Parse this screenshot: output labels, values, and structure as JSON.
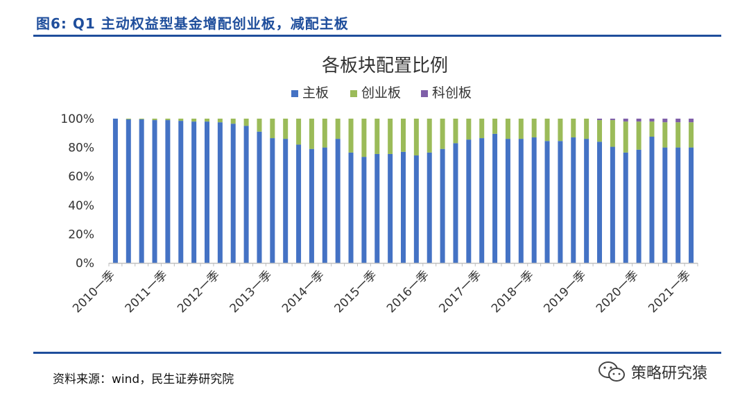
{
  "figure": {
    "title": "图6: Q1 主动权益型基金增配创业板，减配主板",
    "source": "资料来源：wind，民生证券研究院",
    "watermark": "策略研究猿",
    "watermark_icon": "wechat-icon"
  },
  "colors": {
    "main_board": "#4472c4",
    "chinext": "#9bbb59",
    "star": "#7f5fa8",
    "title_blue": "#1f4e9c"
  },
  "chart_data": {
    "type": "bar",
    "stacked": true,
    "title": "各板块配置比例",
    "legend_position": "top-center",
    "grid": false,
    "ylim": [
      0,
      100
    ],
    "yticks": [
      "0%",
      "20%",
      "40%",
      "60%",
      "80%",
      "100%"
    ],
    "xtick_labels": [
      "2010一季",
      "2011一季",
      "2012一季",
      "2013一季",
      "2014一季",
      "2015一季",
      "2016一季",
      "2017一季",
      "2018一季",
      "2019一季",
      "2020一季",
      "2021一季"
    ],
    "categories": [
      "2010Q1",
      "2010Q2",
      "2010Q3",
      "2010Q4",
      "2011Q1",
      "2011Q2",
      "2011Q3",
      "2011Q4",
      "2012Q1",
      "2012Q2",
      "2012Q3",
      "2012Q4",
      "2013Q1",
      "2013Q2",
      "2013Q3",
      "2013Q4",
      "2014Q1",
      "2014Q2",
      "2014Q3",
      "2014Q4",
      "2015Q1",
      "2015Q2",
      "2015Q3",
      "2015Q4",
      "2016Q1",
      "2016Q2",
      "2016Q3",
      "2016Q4",
      "2017Q1",
      "2017Q2",
      "2017Q3",
      "2017Q4",
      "2018Q1",
      "2018Q2",
      "2018Q3",
      "2018Q4",
      "2019Q1",
      "2019Q2",
      "2019Q3",
      "2019Q4",
      "2020Q1",
      "2020Q2",
      "2020Q3",
      "2020Q4",
      "2021Q1"
    ],
    "series": [
      {
        "name": "主板",
        "values": [
          100,
          99.5,
          99.5,
          99,
          99,
          98.5,
          98,
          98,
          97.5,
          96.5,
          95,
          91,
          86.5,
          86,
          82,
          79,
          80,
          86,
          76.5,
          73.5,
          75.5,
          75.5,
          77,
          74.5,
          76.5,
          79,
          83,
          85.5,
          86.5,
          89.5,
          86,
          86,
          87,
          84.5,
          84.5,
          87,
          86,
          84,
          80.5,
          76.5,
          78.5,
          87.5,
          80,
          80,
          80
        ]
      },
      {
        "name": "创业板",
        "values": [
          0,
          0.5,
          0.5,
          1,
          1,
          1.5,
          2,
          2,
          2.5,
          3.5,
          5,
          9,
          13.5,
          14,
          18,
          21,
          20,
          14,
          23.5,
          26.5,
          24.5,
          24.5,
          23,
          25.5,
          23.5,
          21,
          17,
          14.5,
          13.5,
          10.5,
          14,
          14,
          13,
          15.5,
          15.5,
          13,
          14,
          15,
          18.5,
          21.5,
          19.5,
          10.5,
          17.5,
          17.5,
          17.5
        ]
      },
      {
        "name": "科创板",
        "values": [
          0,
          0,
          0,
          0,
          0,
          0,
          0,
          0,
          0,
          0,
          0,
          0,
          0,
          0,
          0,
          0,
          0,
          0,
          0,
          0,
          0,
          0,
          0,
          0,
          0,
          0,
          0,
          0,
          0,
          0,
          0,
          0,
          0,
          0,
          0,
          0,
          0,
          1,
          1,
          2,
          2,
          2,
          2.5,
          2.5,
          2.5
        ]
      }
    ]
  }
}
